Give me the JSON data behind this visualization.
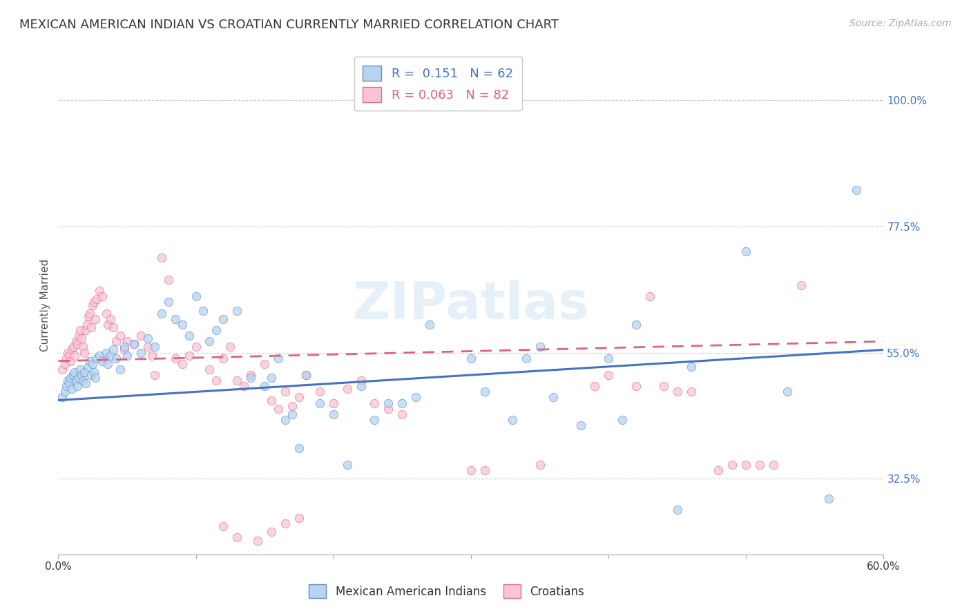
{
  "title": "MEXICAN AMERICAN INDIAN VS CROATIAN CURRENTLY MARRIED CORRELATION CHART",
  "source": "Source: ZipAtlas.com",
  "ylabel": "Currently Married",
  "ytick_labels": [
    "100.0%",
    "77.5%",
    "55.0%",
    "32.5%"
  ],
  "ytick_values": [
    1.0,
    0.775,
    0.55,
    0.325
  ],
  "xlim": [
    0.0,
    0.6
  ],
  "ylim": [
    0.19,
    1.08
  ],
  "watermark": "ZIPatlas",
  "background_color": "#ffffff",
  "grid_color": "#c8c8c8",
  "blue_scatter": [
    [
      0.003,
      0.47
    ],
    [
      0.005,
      0.48
    ],
    [
      0.006,
      0.49
    ],
    [
      0.007,
      0.5
    ],
    [
      0.008,
      0.495
    ],
    [
      0.009,
      0.505
    ],
    [
      0.01,
      0.485
    ],
    [
      0.011,
      0.51
    ],
    [
      0.012,
      0.515
    ],
    [
      0.013,
      0.5
    ],
    [
      0.014,
      0.49
    ],
    [
      0.015,
      0.505
    ],
    [
      0.016,
      0.52
    ],
    [
      0.017,
      0.51
    ],
    [
      0.018,
      0.5
    ],
    [
      0.019,
      0.515
    ],
    [
      0.02,
      0.495
    ],
    [
      0.022,
      0.525
    ],
    [
      0.023,
      0.535
    ],
    [
      0.024,
      0.51
    ],
    [
      0.025,
      0.53
    ],
    [
      0.026,
      0.515
    ],
    [
      0.027,
      0.505
    ],
    [
      0.028,
      0.54
    ],
    [
      0.03,
      0.545
    ],
    [
      0.032,
      0.535
    ],
    [
      0.035,
      0.55
    ],
    [
      0.036,
      0.53
    ],
    [
      0.038,
      0.545
    ],
    [
      0.04,
      0.555
    ],
    [
      0.042,
      0.54
    ],
    [
      0.045,
      0.52
    ],
    [
      0.048,
      0.56
    ],
    [
      0.05,
      0.545
    ],
    [
      0.055,
      0.565
    ],
    [
      0.06,
      0.55
    ],
    [
      0.065,
      0.575
    ],
    [
      0.07,
      0.56
    ],
    [
      0.075,
      0.62
    ],
    [
      0.08,
      0.64
    ],
    [
      0.085,
      0.61
    ],
    [
      0.09,
      0.6
    ],
    [
      0.095,
      0.58
    ],
    [
      0.1,
      0.65
    ],
    [
      0.105,
      0.625
    ],
    [
      0.11,
      0.57
    ],
    [
      0.115,
      0.59
    ],
    [
      0.12,
      0.61
    ],
    [
      0.13,
      0.625
    ],
    [
      0.14,
      0.505
    ],
    [
      0.15,
      0.49
    ],
    [
      0.155,
      0.505
    ],
    [
      0.16,
      0.54
    ],
    [
      0.165,
      0.43
    ],
    [
      0.17,
      0.44
    ],
    [
      0.175,
      0.38
    ],
    [
      0.18,
      0.51
    ],
    [
      0.19,
      0.46
    ],
    [
      0.2,
      0.44
    ],
    [
      0.21,
      0.35
    ],
    [
      0.22,
      0.49
    ],
    [
      0.23,
      0.43
    ],
    [
      0.24,
      0.46
    ],
    [
      0.25,
      0.46
    ],
    [
      0.26,
      0.47
    ],
    [
      0.27,
      0.6
    ],
    [
      0.3,
      0.54
    ],
    [
      0.31,
      0.48
    ],
    [
      0.33,
      0.43
    ],
    [
      0.34,
      0.54
    ],
    [
      0.35,
      0.56
    ],
    [
      0.36,
      0.47
    ],
    [
      0.38,
      0.42
    ],
    [
      0.4,
      0.54
    ],
    [
      0.41,
      0.43
    ],
    [
      0.42,
      0.6
    ],
    [
      0.45,
      0.27
    ],
    [
      0.46,
      0.525
    ],
    [
      0.5,
      0.73
    ],
    [
      0.53,
      0.48
    ],
    [
      0.56,
      0.29
    ],
    [
      0.58,
      0.84
    ]
  ],
  "pink_scatter": [
    [
      0.003,
      0.52
    ],
    [
      0.005,
      0.53
    ],
    [
      0.006,
      0.54
    ],
    [
      0.007,
      0.55
    ],
    [
      0.008,
      0.545
    ],
    [
      0.009,
      0.535
    ],
    [
      0.01,
      0.555
    ],
    [
      0.011,
      0.56
    ],
    [
      0.012,
      0.545
    ],
    [
      0.013,
      0.57
    ],
    [
      0.014,
      0.565
    ],
    [
      0.015,
      0.58
    ],
    [
      0.016,
      0.59
    ],
    [
      0.017,
      0.575
    ],
    [
      0.018,
      0.56
    ],
    [
      0.019,
      0.55
    ],
    [
      0.02,
      0.59
    ],
    [
      0.021,
      0.6
    ],
    [
      0.022,
      0.615
    ],
    [
      0.023,
      0.62
    ],
    [
      0.024,
      0.595
    ],
    [
      0.025,
      0.635
    ],
    [
      0.026,
      0.64
    ],
    [
      0.027,
      0.61
    ],
    [
      0.028,
      0.645
    ],
    [
      0.03,
      0.66
    ],
    [
      0.032,
      0.65
    ],
    [
      0.034,
      0.54
    ],
    [
      0.035,
      0.62
    ],
    [
      0.036,
      0.6
    ],
    [
      0.038,
      0.61
    ],
    [
      0.04,
      0.595
    ],
    [
      0.042,
      0.57
    ],
    [
      0.045,
      0.58
    ],
    [
      0.048,
      0.555
    ],
    [
      0.05,
      0.57
    ],
    [
      0.055,
      0.565
    ],
    [
      0.06,
      0.58
    ],
    [
      0.065,
      0.56
    ],
    [
      0.068,
      0.545
    ],
    [
      0.07,
      0.51
    ],
    [
      0.075,
      0.72
    ],
    [
      0.08,
      0.68
    ],
    [
      0.085,
      0.54
    ],
    [
      0.09,
      0.53
    ],
    [
      0.095,
      0.545
    ],
    [
      0.1,
      0.56
    ],
    [
      0.11,
      0.52
    ],
    [
      0.115,
      0.5
    ],
    [
      0.12,
      0.54
    ],
    [
      0.125,
      0.56
    ],
    [
      0.13,
      0.5
    ],
    [
      0.135,
      0.49
    ],
    [
      0.14,
      0.51
    ],
    [
      0.15,
      0.53
    ],
    [
      0.155,
      0.465
    ],
    [
      0.16,
      0.45
    ],
    [
      0.165,
      0.48
    ],
    [
      0.17,
      0.455
    ],
    [
      0.175,
      0.47
    ],
    [
      0.18,
      0.51
    ],
    [
      0.19,
      0.48
    ],
    [
      0.2,
      0.46
    ],
    [
      0.21,
      0.485
    ],
    [
      0.22,
      0.5
    ],
    [
      0.23,
      0.46
    ],
    [
      0.24,
      0.45
    ],
    [
      0.25,
      0.44
    ],
    [
      0.12,
      0.24
    ],
    [
      0.13,
      0.22
    ],
    [
      0.145,
      0.215
    ],
    [
      0.155,
      0.23
    ],
    [
      0.165,
      0.245
    ],
    [
      0.175,
      0.255
    ],
    [
      0.3,
      0.34
    ],
    [
      0.31,
      0.34
    ],
    [
      0.35,
      0.35
    ],
    [
      0.39,
      0.49
    ],
    [
      0.4,
      0.51
    ],
    [
      0.42,
      0.49
    ],
    [
      0.43,
      0.65
    ],
    [
      0.44,
      0.49
    ],
    [
      0.45,
      0.48
    ],
    [
      0.46,
      0.48
    ],
    [
      0.48,
      0.34
    ],
    [
      0.49,
      0.35
    ],
    [
      0.5,
      0.35
    ],
    [
      0.51,
      0.35
    ],
    [
      0.52,
      0.35
    ],
    [
      0.54,
      0.67
    ]
  ],
  "blue_line": {
    "x0": 0.0,
    "y0": 0.465,
    "x1": 0.6,
    "y1": 0.555
  },
  "pink_line": {
    "x0": 0.0,
    "y0": 0.535,
    "x1": 0.6,
    "y1": 0.57
  },
  "title_fontsize": 13,
  "axis_fontsize": 11,
  "tick_fontsize": 11,
  "source_fontsize": 10
}
